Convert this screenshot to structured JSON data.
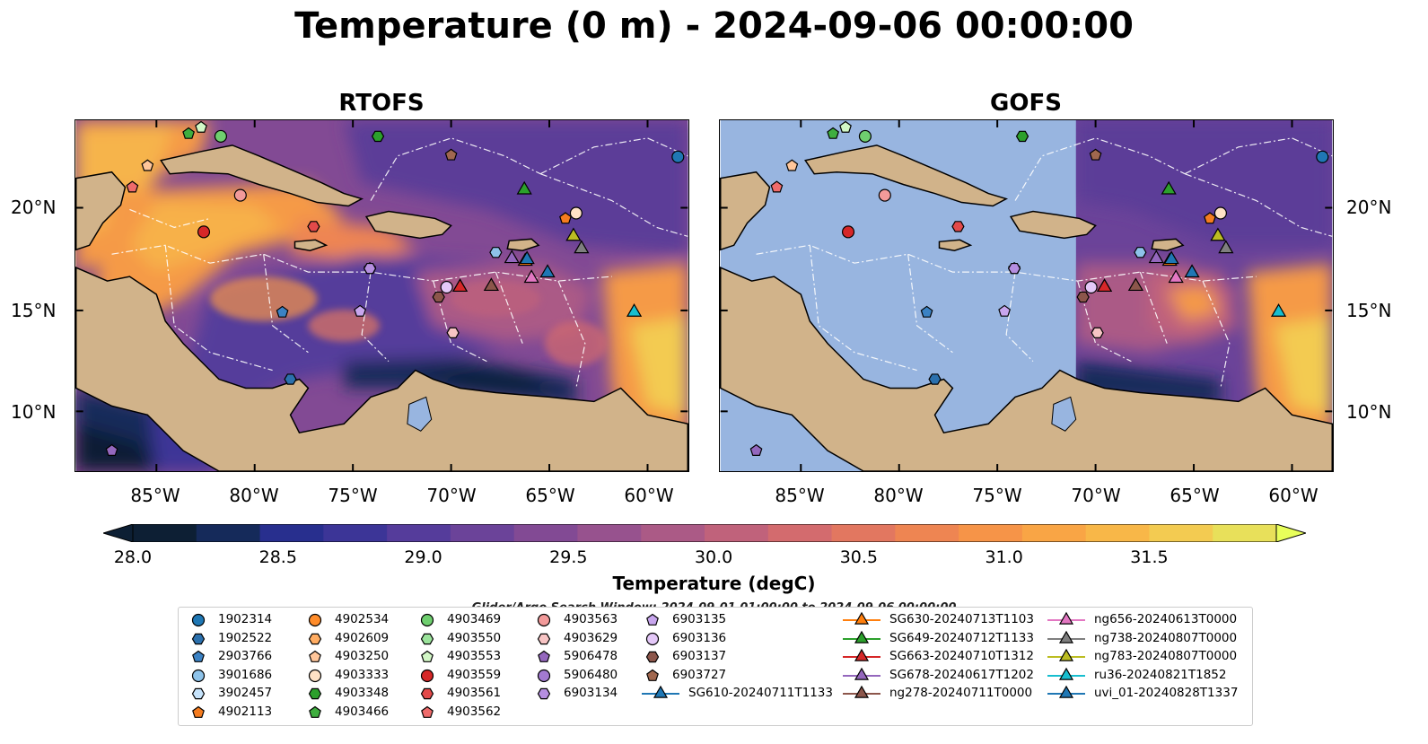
{
  "title": "Temperature (0 m) - 2024-09-06 00:00:00",
  "panels": [
    {
      "name": "RTOFS"
    },
    {
      "name": "GOFS"
    }
  ],
  "lon_ticks": [
    "85°W",
    "80°W",
    "75°W",
    "70°W",
    "65°W",
    "60°W"
  ],
  "lat_ticks": [
    "20°N",
    "15°N",
    "10°N"
  ],
  "colorbar": {
    "label": "Temperature (degC)",
    "ticks": [
      "28.0",
      "28.5",
      "29.0",
      "29.5",
      "30.0",
      "30.5",
      "31.0",
      "31.5"
    ],
    "range": [
      28.0,
      31.5
    ],
    "colors": [
      "#0d1f34",
      "#152a5a",
      "#282f8e",
      "#3c3597",
      "#553c9b",
      "#6b4399",
      "#824a94",
      "#97528e",
      "#ab5a86",
      "#c0627b",
      "#d36b6e",
      "#e27760",
      "#ee8552",
      "#f69448",
      "#f9a545",
      "#f8b748",
      "#f3cb51",
      "#e8e05a"
    ]
  },
  "search_window": "Glider/Argo Search Window: 2024-09-01 01:00:00 to 2024-09-06 00:00:00",
  "legend": {
    "columns": [
      [
        {
          "label": "1902314",
          "shape": "circle",
          "color": "#1f77b4"
        },
        {
          "label": "1902522",
          "shape": "hexagon",
          "color": "#2b70ad"
        },
        {
          "label": "2903766",
          "shape": "pentagon",
          "color": "#3b82c4"
        },
        {
          "label": "3901686",
          "shape": "circle",
          "color": "#8ec3ea"
        },
        {
          "label": "3902457",
          "shape": "hexagon",
          "color": "#c6e3fb"
        },
        {
          "label": "4902113",
          "shape": "pentagon",
          "color": "#f57c1f"
        }
      ],
      [
        {
          "label": "4902534",
          "shape": "circle",
          "color": "#ff8c2a"
        },
        {
          "label": "4902609",
          "shape": "hexagon",
          "color": "#ffac62"
        },
        {
          "label": "4903250",
          "shape": "pentagon",
          "color": "#ffc69a"
        },
        {
          "label": "4903333",
          "shape": "circle",
          "color": "#ffe2c6"
        },
        {
          "label": "4903348",
          "shape": "hexagon",
          "color": "#2ca02c"
        },
        {
          "label": "4903466",
          "shape": "pentagon",
          "color": "#3fae3f"
        }
      ],
      [
        {
          "label": "4903469",
          "shape": "circle",
          "color": "#6fcf6f"
        },
        {
          "label": "4903550",
          "shape": "hexagon",
          "color": "#9be39b"
        },
        {
          "label": "4903553",
          "shape": "pentagon",
          "color": "#d2f7c6"
        },
        {
          "label": "4903559",
          "shape": "circle",
          "color": "#d62728"
        },
        {
          "label": "4903561",
          "shape": "hexagon",
          "color": "#e34a4a"
        },
        {
          "label": "4903562",
          "shape": "pentagon",
          "color": "#ef6b6b"
        }
      ],
      [
        {
          "label": "4903563",
          "shape": "circle",
          "color": "#f29a9a"
        },
        {
          "label": "4903629",
          "shape": "hexagon",
          "color": "#f7c4c4"
        },
        {
          "label": "5906478",
          "shape": "pentagon",
          "color": "#9467bd"
        },
        {
          "label": "5906480",
          "shape": "circle",
          "color": "#a27ad0"
        },
        {
          "label": "6903134",
          "shape": "hexagon",
          "color": "#b58ee0"
        }
      ],
      [
        {
          "label": "6903135",
          "shape": "pentagon",
          "color": "#c8a6ee"
        },
        {
          "label": "6903136",
          "shape": "circle",
          "color": "#e4c8f8"
        },
        {
          "label": "6903137",
          "shape": "hexagon",
          "color": "#8c564b"
        },
        {
          "label": "6903727",
          "shape": "pentagon",
          "color": "#a0674f"
        },
        {
          "label": "SG610-20240711T1133",
          "shape": "triangle",
          "color": "#1f77b4",
          "line": "#1f77b4"
        }
      ],
      [
        {
          "label": "SG630-20240713T1103",
          "shape": "triangle",
          "color": "#ff7f0e",
          "line": "#ff7f0e"
        },
        {
          "label": "SG649-20240712T1133",
          "shape": "triangle",
          "color": "#2ca02c",
          "line": "#2ca02c"
        },
        {
          "label": "SG663-20240710T1312",
          "shape": "triangle",
          "color": "#d62728",
          "line": "#d62728"
        },
        {
          "label": "SG678-20240617T1202",
          "shape": "triangle",
          "color": "#9467bd",
          "line": "#9467bd"
        },
        {
          "label": "ng278-20240711T0000",
          "shape": "triangle",
          "color": "#8c564b",
          "line": "#8c564b"
        }
      ],
      [
        {
          "label": "ng656-20240613T0000",
          "shape": "triangle",
          "color": "#e377c2",
          "line": "#e377c2"
        },
        {
          "label": "ng738-20240807T0000",
          "shape": "triangle",
          "color": "#7f7f7f",
          "line": "#7f7f7f"
        },
        {
          "label": "ng783-20240807T0000",
          "shape": "triangle",
          "color": "#bcbd22",
          "line": "#bcbd22"
        },
        {
          "label": "ru36-20240821T1852",
          "shape": "triangle",
          "color": "#17becf",
          "line": "#17becf"
        },
        {
          "label": "uvi_01-20240828T1337",
          "shape": "triangle",
          "color": "#1f77b4",
          "line": "#1f77b4"
        }
      ]
    ]
  },
  "map_colors": {
    "land": "#d1b38a",
    "gofs_missing": "#98b5e0",
    "rtofs_base": "#824a94",
    "north_atlantic": "#5c3e98",
    "warm": "#f59a47",
    "hot": "#f7c64e",
    "cool": "#3c3597",
    "cold": "#12233f",
    "boundary": "#ffffff"
  }
}
